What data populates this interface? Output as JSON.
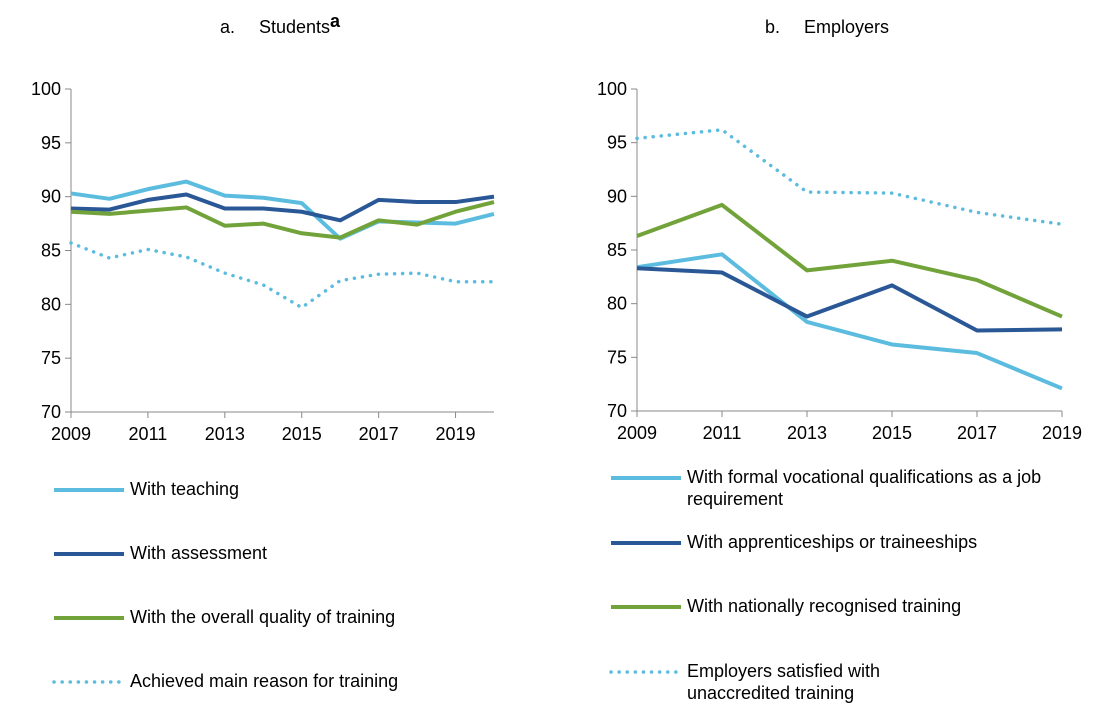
{
  "chart_data": [
    {
      "type": "line",
      "label": "a.",
      "title": "Students",
      "title_footnote": "a",
      "x": [
        2009,
        2010,
        2011,
        2012,
        2013,
        2014,
        2015,
        2016,
        2017,
        2018,
        2019,
        2020
      ],
      "xlim": [
        2009,
        2020
      ],
      "xticks": [
        2009,
        2011,
        2013,
        2015,
        2017,
        2019
      ],
      "ylim": [
        70,
        100
      ],
      "yticks": [
        70,
        75,
        80,
        85,
        90,
        95,
        100
      ],
      "series": [
        {
          "name": "With teaching",
          "color": "#5bbcdf",
          "style": "solid",
          "values": [
            90.3,
            89.8,
            90.7,
            91.4,
            90.1,
            89.9,
            89.4,
            86.1,
            87.7,
            87.6,
            87.5,
            88.4
          ]
        },
        {
          "name": "With assessment",
          "color": "#2a5795",
          "style": "solid",
          "values": [
            88.9,
            88.8,
            89.7,
            90.2,
            88.9,
            88.9,
            88.6,
            87.8,
            89.7,
            89.5,
            89.5,
            90.0
          ]
        },
        {
          "name": "With the overall quality of training",
          "color": "#72a33a",
          "style": "solid",
          "values": [
            88.6,
            88.4,
            88.7,
            89.0,
            87.3,
            87.5,
            86.6,
            86.2,
            87.8,
            87.4,
            88.6,
            89.5
          ]
        },
        {
          "name": "Achieved main reason for training",
          "color": "#5bbcdf",
          "style": "dotted",
          "values": [
            85.7,
            84.3,
            85.1,
            84.4,
            82.9,
            81.8,
            79.7,
            82.2,
            82.8,
            82.9,
            82.1,
            82.1
          ]
        }
      ]
    },
    {
      "type": "line",
      "label": "b.",
      "title": "Employers",
      "x": [
        2009,
        2011,
        2013,
        2015,
        2017,
        2019
      ],
      "xlim": [
        2009,
        2019
      ],
      "xticks": [
        2009,
        2011,
        2013,
        2015,
        2017,
        2019
      ],
      "ylim": [
        70,
        100
      ],
      "yticks": [
        70,
        75,
        80,
        85,
        90,
        95,
        100
      ],
      "series": [
        {
          "name": "With formal vocational qualifications as a job requirement",
          "color": "#5bbcdf",
          "style": "solid",
          "values": [
            83.4,
            84.6,
            78.3,
            76.2,
            75.4,
            72.1
          ]
        },
        {
          "name": "With apprenticeships or traineeships",
          "color": "#2a5795",
          "style": "solid",
          "values": [
            83.3,
            82.9,
            78.8,
            81.7,
            77.5,
            77.6
          ]
        },
        {
          "name": "With nationally recognised training",
          "color": "#72a33a",
          "style": "solid",
          "values": [
            86.3,
            89.2,
            83.1,
            84.0,
            82.2,
            78.8
          ]
        },
        {
          "name": "Employers satisfied with unaccredited training",
          "color": "#5bbcdf",
          "style": "dotted",
          "values": [
            95.4,
            96.2,
            90.4,
            90.3,
            88.5,
            87.4
          ]
        }
      ]
    }
  ]
}
